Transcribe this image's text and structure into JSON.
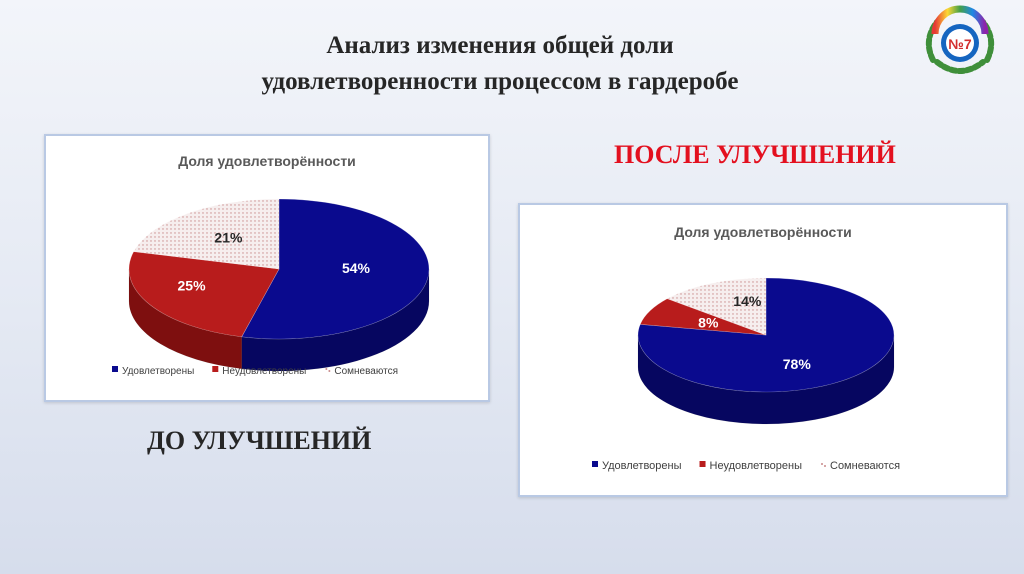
{
  "slide": {
    "title_line1": "Анализ изменения общей доли",
    "title_line2": "удовлетворенности процессом в гардеробе",
    "label_before": "ДО УЛУЧШЕНИЙ",
    "label_after": "ПОСЛЕ УЛУЧШЕНИЙ",
    "logo_text": "№7"
  },
  "colors": {
    "satisfied": "#0a0a8e",
    "satisfied_side": "#060660",
    "unsatisfied": "#b81c1c",
    "unsatisfied_side": "#7e0f0f",
    "doubt": "#f6eeee",
    "doubt_dots": "#c98a8a",
    "title_red": "#e3101f"
  },
  "chart_data": [
    {
      "type": "pie",
      "title": "Доля удовлетворённости",
      "categories": [
        "Удовлетворены",
        "Неудовлетворены",
        "Сомневаются"
      ],
      "values": [
        54,
        25,
        21
      ],
      "value_labels": [
        "54%",
        "25%",
        "21%"
      ],
      "legend_position": "bottom"
    },
    {
      "type": "pie",
      "title": "Доля удовлетворённости",
      "categories": [
        "Удовлетворены",
        "Неудовлетворены",
        "Сомневаются"
      ],
      "values": [
        78,
        8,
        14
      ],
      "value_labels": [
        "78%",
        "8%",
        "14%"
      ],
      "legend_position": "bottom"
    }
  ]
}
